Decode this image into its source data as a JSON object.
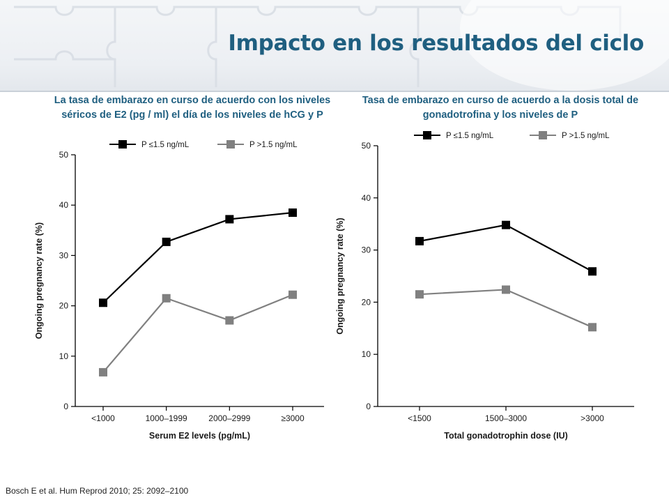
{
  "slide": {
    "title": "Impacto en los resultados del ciclo",
    "left_subtitle": "La tasa de embarazo en curso de acuerdo con los niveles séricos de E2 (pg / ml) el día de los niveles de hCG y P",
    "right_subtitle": "Tasa de embarazo en curso de acuerdo a la dosis total de gonadotrofina y los niveles de P",
    "citation": "Bosch E et al. Hum Reprod 2010; 25: 2092–2100"
  },
  "colors": {
    "title": "#1f5f80",
    "series_low": "#000000",
    "series_high": "#808080"
  },
  "chart_data": [
    {
      "type": "line",
      "categories": [
        "<1000",
        "1000–1999",
        "2000–2999",
        "≥3000"
      ],
      "series": [
        {
          "name": "P ≤1.5 ng/mL",
          "values": [
            20.6,
            32.7,
            37.2,
            38.5
          ]
        },
        {
          "name": "P >1.5 ng/mL",
          "values": [
            6.8,
            21.5,
            17.1,
            22.2
          ]
        }
      ],
      "xlabel": "Serum E2 levels (pg/mL)",
      "ylabel": "Ongoing pregnancy rate (%)",
      "ylim": [
        0,
        50
      ],
      "yticks": [
        0,
        10,
        20,
        30,
        40,
        50
      ],
      "grid": false,
      "legend_position": "top"
    },
    {
      "type": "line",
      "categories": [
        "<1500",
        "1500–3000",
        ">3000"
      ],
      "series": [
        {
          "name": "P ≤1.5 ng/mL",
          "values": [
            31.7,
            34.8,
            25.9
          ]
        },
        {
          "name": "P >1.5 ng/mL",
          "values": [
            21.5,
            22.4,
            15.2
          ]
        }
      ],
      "xlabel": "Total gonadotrophin dose (IU)",
      "ylabel": "Ongoing pregnancy rate (%)",
      "ylim": [
        0,
        50
      ],
      "yticks": [
        0,
        10,
        20,
        30,
        40,
        50
      ],
      "grid": false,
      "legend_position": "top"
    }
  ]
}
